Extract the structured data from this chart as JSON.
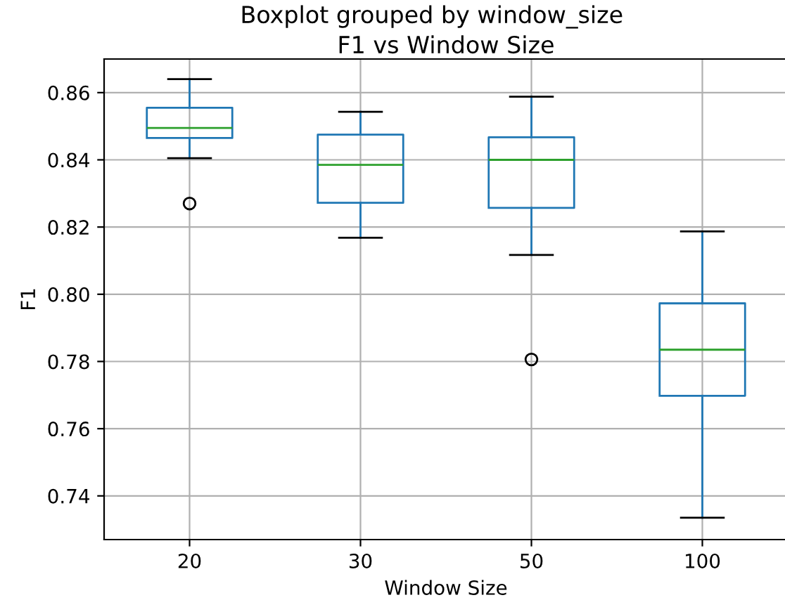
{
  "chart_data": {
    "type": "box",
    "title": "Boxplot grouped by window_size",
    "subtitle": "F1 vs Window Size",
    "xlabel": "Window Size",
    "ylabel": "F1",
    "categories": [
      "20",
      "30",
      "50",
      "100"
    ],
    "boxes": [
      {
        "low": 0.8405,
        "q1": 0.8465,
        "median": 0.8495,
        "q3": 0.8555,
        "high": 0.864,
        "outliers": [
          0.827
        ]
      },
      {
        "low": 0.8168,
        "q1": 0.8272,
        "median": 0.8385,
        "q3": 0.8475,
        "high": 0.8543
      },
      {
        "low": 0.8117,
        "q1": 0.8257,
        "median": 0.84,
        "q3": 0.8467,
        "high": 0.8588,
        "outliers": [
          0.7806
        ]
      },
      {
        "low": 0.7335,
        "q1": 0.7698,
        "median": 0.7835,
        "q3": 0.7973,
        "high": 0.8187
      }
    ],
    "color": "#1f77b4",
    "ylim": [
      0.727,
      0.87
    ],
    "yticks": [
      {
        "value": 0.74,
        "label": "0.74"
      },
      {
        "value": 0.76,
        "label": "0.76"
      },
      {
        "value": 0.78,
        "label": "0.78"
      },
      {
        "value": 0.8,
        "label": "0.80"
      },
      {
        "value": 0.82,
        "label": "0.82"
      },
      {
        "value": 0.84,
        "label": "0.84"
      },
      {
        "value": 0.86,
        "label": "0.86"
      }
    ],
    "grid": true
  }
}
